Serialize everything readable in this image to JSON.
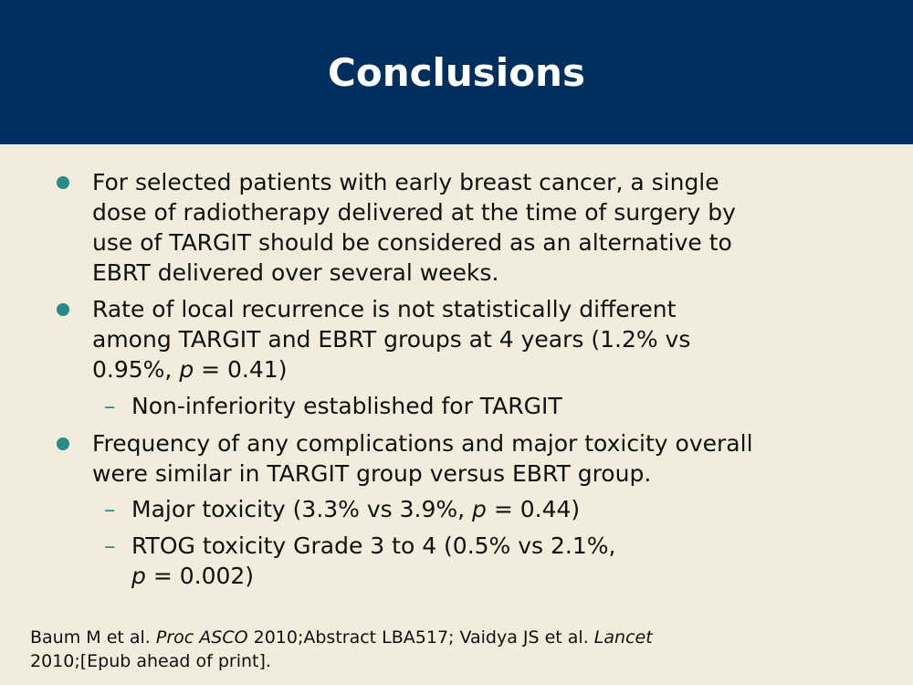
{
  "slide": {
    "title": "Conclusions"
  },
  "bullets": [
    {
      "lines": [
        "For selected patients with early breast cancer, a single",
        "dose of radiotherapy delivered at the time of surgery by",
        "use of TARGIT should be considered as an alternative to",
        "EBRT delivered over several weeks."
      ]
    },
    {
      "lines": [
        "Rate of local recurrence is not statistically different",
        "among TARGIT and EBRT groups at 4 years (1.2% vs",
        "0.95%, "
      ],
      "line3_italic": "p",
      "line3_tail": " = 0.41)",
      "sub": [
        {
          "text": "Non-inferiority established for TARGIT"
        }
      ]
    },
    {
      "lines": [
        "Frequency of any complications and major toxicity overall",
        "were similar in TARGIT group versus EBRT group."
      ],
      "sub": [
        {
          "pre": "Major toxicity (3.3% vs 3.9%, ",
          "italic": "p",
          "post": " = 0.44)"
        },
        {
          "pre": "RTOG toxicity Grade 3 to 4 (0.5% vs 2.1%,",
          "line2_italic": "p",
          "line2_post": " = 0.002)"
        }
      ]
    }
  ],
  "citation": {
    "line1_a": "Baum M et al. ",
    "line1_b": "Proc ASCO",
    "line1_c": " 2010;Abstract LBA517; Vaidya JS et al. ",
    "line1_d": "Lancet",
    "line2": "2010;[Epub ahead of print]."
  }
}
